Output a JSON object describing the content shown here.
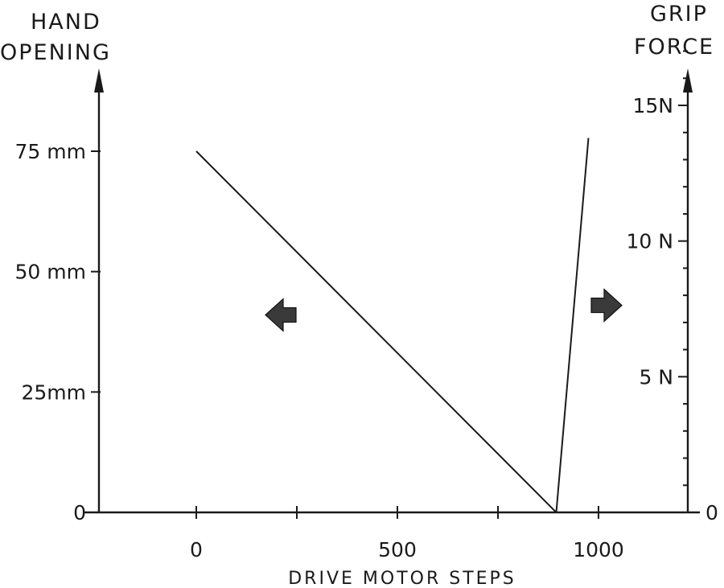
{
  "chart_data": {
    "type": "line",
    "xlabel": "DRIVE MOTOR STEPS",
    "xlim": [
      -240,
      1250
    ],
    "x_ticks": [
      0,
      250,
      500,
      750,
      1000
    ],
    "x_tick_labels": [
      "0",
      "",
      "500",
      "",
      "1000"
    ],
    "left_axis": {
      "label_lines": [
        "HAND",
        "OPENING"
      ],
      "ylim": [
        0,
        90
      ],
      "ticks": [
        0,
        25,
        50,
        75
      ],
      "tick_labels": [
        "0",
        "25mm",
        "50 mm",
        "75 mm"
      ]
    },
    "right_axis": {
      "label_lines": [
        "GRIP",
        "FORCE"
      ],
      "ylim": [
        0,
        17
      ],
      "ticks": [
        0,
        5,
        10,
        15
      ],
      "tick_labels": [
        "0",
        "5 N",
        "10 N",
        "15N"
      ],
      "minor_step": 1
    },
    "series": [
      {
        "axis": "left",
        "x": [
          0,
          895
        ],
        "y": [
          75,
          0
        ]
      },
      {
        "axis": "right",
        "x": [
          895,
          975
        ],
        "y": [
          0,
          13.8
        ]
      }
    ],
    "annotations": [
      {
        "kind": "arrow",
        "direction": "left",
        "axis": "left",
        "x": 220,
        "y": 41
      },
      {
        "kind": "arrow",
        "direction": "right",
        "axis": "left",
        "x": 1010,
        "y": 43
      }
    ]
  }
}
